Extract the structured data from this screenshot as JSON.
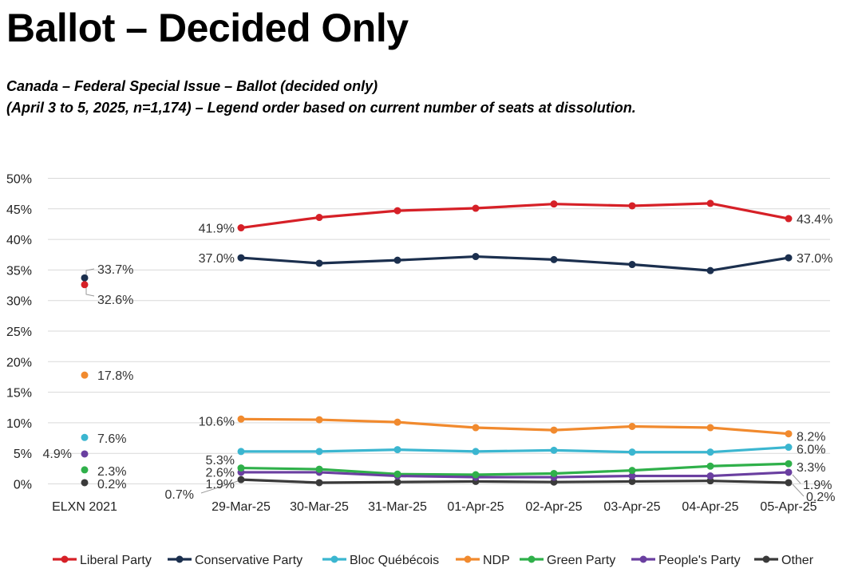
{
  "title": "Ballot – Decided Only",
  "subtitle_line1": "Canada – Federal Special Issue – Ballot (decided only)",
  "subtitle_line2": "(April 3 to 5, 2025, n=1,174) – Legend order based on current number of seats at dissolution.",
  "chart_data": {
    "type": "line",
    "y_ticks": [
      "50%",
      "45%",
      "40%",
      "35%",
      "30%",
      "25%",
      "20%",
      "15%",
      "10%",
      "5%",
      "0%"
    ],
    "ylim": [
      0,
      50
    ],
    "grid": true,
    "legend_position": "bottom",
    "baseline_category": "ELXN 2021",
    "categories": [
      "29-Mar-25",
      "30-Mar-25",
      "31-Mar-25",
      "01-Apr-25",
      "02-Apr-25",
      "03-Apr-25",
      "04-Apr-25",
      "05-Apr-25"
    ],
    "series": [
      {
        "name": "Liberal Party",
        "color": "#d62027",
        "baseline": 32.6,
        "baseline_label": "32.6%",
        "values": [
          41.9,
          43.6,
          44.7,
          45.1,
          45.8,
          45.5,
          45.9,
          43.4
        ],
        "start_label": "41.9%",
        "end_label": "43.4%"
      },
      {
        "name": "Conservative Party",
        "color": "#1b2f4e",
        "baseline": 33.7,
        "baseline_label": "33.7%",
        "values": [
          37.0,
          36.1,
          36.6,
          37.2,
          36.7,
          35.9,
          34.9,
          37.0
        ],
        "start_label": "37.0%",
        "end_label": "37.0%"
      },
      {
        "name": "Bloc Québécois",
        "color": "#3bb6d0",
        "baseline": 7.6,
        "baseline_label": "7.6%",
        "values": [
          5.3,
          5.3,
          5.6,
          5.3,
          5.5,
          5.2,
          5.2,
          6.0
        ],
        "start_label": "5.3%",
        "end_label": "6.0%"
      },
      {
        "name": "NDP",
        "color": "#f18a2e",
        "baseline": 17.8,
        "baseline_label": "17.8%",
        "values": [
          10.6,
          10.5,
          10.1,
          9.2,
          8.8,
          9.4,
          9.2,
          8.2
        ],
        "start_label": "10.6%",
        "end_label": "8.2%"
      },
      {
        "name": "Green Party",
        "color": "#2fb04a",
        "baseline": 2.3,
        "baseline_label": "2.3%",
        "values": [
          2.6,
          2.4,
          1.6,
          1.5,
          1.7,
          2.2,
          2.9,
          3.3
        ],
        "start_label": "2.6%",
        "end_label": "3.3%"
      },
      {
        "name": "People's Party",
        "color": "#6a3fa0",
        "baseline": 4.9,
        "baseline_label": "4.9%",
        "values": [
          1.9,
          1.9,
          1.3,
          1.1,
          1.1,
          1.3,
          1.3,
          1.9
        ],
        "start_label": "1.9%",
        "end_label": "1.9%"
      },
      {
        "name": "Other",
        "color": "#3a3a3a",
        "baseline": 0.2,
        "baseline_label": "0.2%",
        "values": [
          0.7,
          0.2,
          0.3,
          0.4,
          0.3,
          0.4,
          0.5,
          0.2
        ],
        "start_label": "0.7%",
        "end_label": "0.2%"
      }
    ]
  }
}
